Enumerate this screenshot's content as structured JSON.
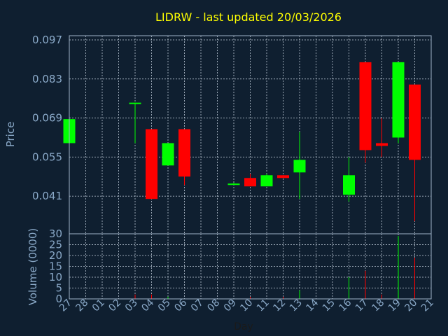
{
  "chart_data": {
    "type": "candlestick",
    "title": "LIDRW - last updated 20/03/2026",
    "xlabel": "Day",
    "x_ticks": [
      "27",
      "28",
      "01",
      "02",
      "03",
      "04",
      "05",
      "06",
      "07",
      "08",
      "09",
      "10",
      "11",
      "12",
      "13",
      "14",
      "15",
      "16",
      "17",
      "18",
      "19",
      "20",
      "21"
    ],
    "price_panel": {
      "ylabel": "Price",
      "ylim": [
        0.0275,
        0.0985
      ],
      "y_ticks": [
        "0.097",
        "0.083",
        "0.069",
        "0.055",
        "0.041"
      ],
      "grid": true,
      "candles": [
        {
          "day": "27",
          "open": 0.06,
          "high": 0.0686,
          "low": 0.06,
          "close": 0.0686
        },
        {
          "day": "03",
          "open": 0.0745,
          "high": 0.0745,
          "low": 0.06,
          "close": 0.0745
        },
        {
          "day": "04",
          "open": 0.065,
          "high": 0.065,
          "low": 0.04,
          "close": 0.04
        },
        {
          "day": "05",
          "open": 0.052,
          "high": 0.06,
          "low": 0.052,
          "close": 0.06
        },
        {
          "day": "06",
          "open": 0.065,
          "high": 0.065,
          "low": 0.045,
          "close": 0.048
        },
        {
          "day": "09",
          "open": 0.0455,
          "high": 0.0458,
          "low": 0.0455,
          "close": 0.0455
        },
        {
          "day": "10",
          "open": 0.0475,
          "high": 0.049,
          "low": 0.0445,
          "close": 0.0445
        },
        {
          "day": "11",
          "open": 0.0445,
          "high": 0.049,
          "low": 0.0445,
          "close": 0.0485
        },
        {
          "day": "12",
          "open": 0.0485,
          "high": 0.0485,
          "low": 0.0475,
          "close": 0.0475
        },
        {
          "day": "13",
          "open": 0.0495,
          "high": 0.064,
          "low": 0.04,
          "close": 0.054
        },
        {
          "day": "16",
          "open": 0.0415,
          "high": 0.055,
          "low": 0.039,
          "close": 0.0485
        },
        {
          "day": "17",
          "open": 0.089,
          "high": 0.089,
          "low": 0.053,
          "close": 0.0575
        },
        {
          "day": "18",
          "open": 0.06,
          "high": 0.069,
          "low": 0.055,
          "close": 0.059
        },
        {
          "day": "19",
          "open": 0.062,
          "high": 0.089,
          "low": 0.06,
          "close": 0.089
        },
        {
          "day": "20",
          "open": 0.081,
          "high": 0.081,
          "low": 0.032,
          "close": 0.054
        }
      ]
    },
    "volume_panel": {
      "ylabel": "Volume (0000)",
      "ylim": [
        0,
        30
      ],
      "y_ticks": [
        "30",
        "25",
        "20",
        "15",
        "10",
        "5",
        "0"
      ],
      "grid": true,
      "bars": [
        {
          "day": "03",
          "value": 2,
          "color": "red"
        },
        {
          "day": "04",
          "value": 2,
          "color": "red"
        },
        {
          "day": "05",
          "value": 1,
          "color": "green"
        },
        {
          "day": "10",
          "value": 1,
          "color": "red"
        },
        {
          "day": "12",
          "value": 1,
          "color": "red"
        },
        {
          "day": "13",
          "value": 4,
          "color": "green"
        },
        {
          "day": "16",
          "value": 10,
          "color": "green"
        },
        {
          "day": "17",
          "value": 13,
          "color": "red"
        },
        {
          "day": "18",
          "value": 2,
          "color": "red"
        },
        {
          "day": "19",
          "value": 29,
          "color": "green"
        },
        {
          "day": "20",
          "value": 19,
          "color": "red"
        }
      ]
    },
    "colors": {
      "background": "#0f1f30",
      "up": "#00ff00",
      "down": "#ff0000",
      "title": "#ffff00",
      "text": "#8aa9c8"
    }
  }
}
